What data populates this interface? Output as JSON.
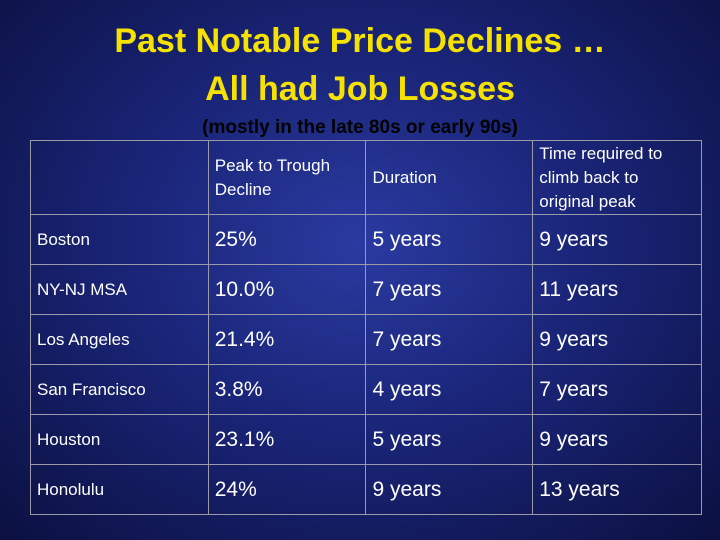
{
  "header": {
    "title_lines": [
      "Past Notable Price Declines …",
      "All had Job Losses"
    ],
    "subtitle": "(mostly in the late 80s or early 90s)"
  },
  "table": {
    "columns": [
      "",
      "Peak to Trough Decline",
      "Duration",
      "Time required to climb back to original peak"
    ],
    "rows": [
      [
        "Boston",
        "25%",
        "5 years",
        "9 years"
      ],
      [
        "NY-NJ MSA",
        "10.0%",
        "7 years",
        "11 years"
      ],
      [
        "Los Angeles",
        "21.4%",
        "7 years",
        "9 years"
      ],
      [
        "San Francisco",
        "3.8%",
        "4 years",
        "7 years"
      ],
      [
        "Houston",
        "23.1%",
        "5 years",
        "9 years"
      ],
      [
        "Honolulu",
        "24%",
        "9 years",
        "13 years"
      ]
    ]
  }
}
